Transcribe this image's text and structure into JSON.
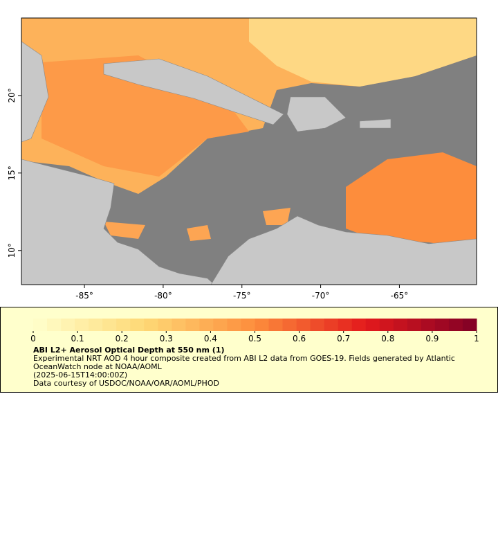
{
  "map": {
    "lon_range": [
      -89,
      -60.1
    ],
    "lat_range": [
      7.8,
      25
    ],
    "lon_ticks": [
      {
        "value": -85,
        "label": "-85°"
      },
      {
        "value": -80,
        "label": "-80°"
      },
      {
        "value": -75,
        "label": "-75°"
      },
      {
        "value": -70,
        "label": "-70°"
      },
      {
        "value": -65,
        "label": "-65°"
      }
    ],
    "lat_ticks": [
      {
        "value": 10,
        "label": "10°"
      },
      {
        "value": 15,
        "label": "15°"
      },
      {
        "value": 20,
        "label": "20°"
      }
    ]
  },
  "colorbar": {
    "range": [
      0,
      1
    ],
    "ticks": [
      0,
      0.1,
      0.2,
      0.3,
      0.4,
      0.5,
      0.6,
      0.7,
      0.8,
      0.9,
      1
    ],
    "steps": 32,
    "color_stops": [
      "#ffffcc",
      "#fed976",
      "#fd8d3c",
      "#e31a1c",
      "#800026"
    ]
  },
  "legend": {
    "title": "ABI L2+ Aerosol Optical Depth at 550 nm (1)",
    "description": "Experimental NRT AOD 4 hour composite created from ABI L2 data from GOES-19. Fields generated by Atlantic OceanWatch node at NOAA/AOML",
    "time": "(2025-06-15T14:00:00Z)",
    "credit": "Data courtesy of USDOC/NOAA/OAR/AOML/PHOD"
  }
}
